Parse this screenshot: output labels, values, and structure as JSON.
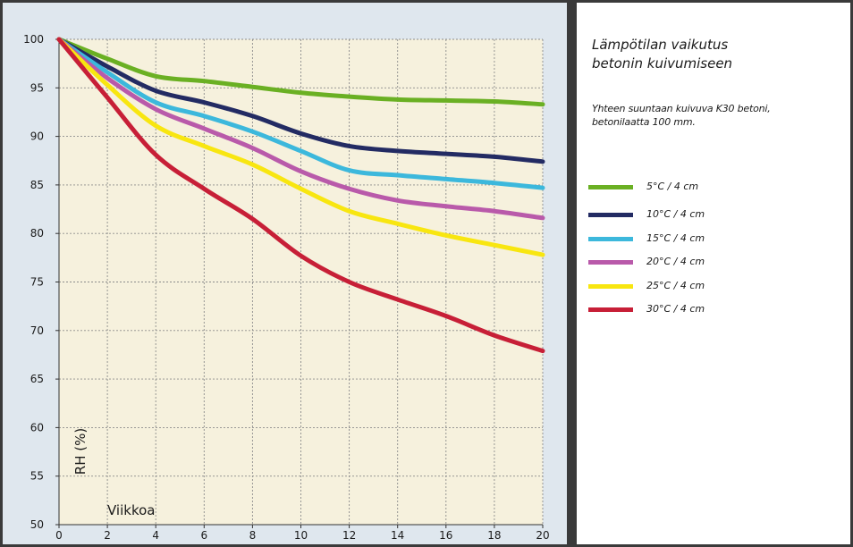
{
  "chart_data": {
    "type": "line",
    "title": "Lämpötilan vaikutus betonin kuivumiseen",
    "title_lines": [
      "Lämpötilan vaikutus",
      "betonin kuivumiseen"
    ],
    "subtitle": "Yhteen suuntaan kuivuva K30 betoni, betonilaatta 100 mm.",
    "subtitle_lines": [
      "Yhteen suuntaan kuivuva K30 betoni,",
      "betonilaatta 100 mm."
    ],
    "xlabel": "Viikkoa",
    "ylabel": "RH (%)",
    "xlim": [
      0,
      20
    ],
    "ylim": [
      50,
      100
    ],
    "x_ticks": [
      "0",
      "2",
      "4",
      "6",
      "8",
      "10",
      "12",
      "14",
      "16",
      "18",
      "20"
    ],
    "y_ticks": [
      "50",
      "55",
      "60",
      "65",
      "70",
      "75",
      "80",
      "85",
      "90",
      "95",
      "100"
    ],
    "grid": true,
    "background_color": "#f6f1dd",
    "legend_position": "right",
    "x": [
      0,
      2,
      4,
      6,
      8,
      10,
      12,
      14,
      16,
      18,
      20
    ],
    "series": [
      {
        "name": "5°C / 4 cm",
        "color": "#6ab023",
        "values": [
          100,
          98,
          96.2,
          95.7,
          95.1,
          94.5,
          94.1,
          93.8,
          93.7,
          93.6,
          93.3
        ]
      },
      {
        "name": "10°C / 4 cm",
        "color": "#232b63",
        "values": [
          100,
          97.2,
          94.7,
          93.5,
          92.1,
          90.3,
          89.0,
          88.5,
          88.2,
          87.9,
          87.4
        ]
      },
      {
        "name": "15°C / 4 cm",
        "color": "#3cb8dc",
        "values": [
          100,
          96.6,
          93.5,
          92.1,
          90.5,
          88.5,
          86.5,
          86.0,
          85.6,
          85.2,
          84.7
        ]
      },
      {
        "name": "20°C / 4 cm",
        "color": "#b95aaa",
        "values": [
          100,
          96.0,
          92.8,
          90.8,
          88.8,
          86.4,
          84.6,
          83.4,
          82.8,
          82.3,
          81.6
        ]
      },
      {
        "name": "25°C / 4 cm",
        "color": "#f8e610",
        "values": [
          100,
          95.3,
          91.1,
          89.0,
          87.1,
          84.6,
          82.3,
          81.0,
          79.8,
          78.8,
          77.8
        ]
      },
      {
        "name": "30°C / 4 cm",
        "color": "#c71f37",
        "values": [
          100,
          94.0,
          88.1,
          84.6,
          81.5,
          77.7,
          75.0,
          73.2,
          71.5,
          69.5,
          67.9
        ]
      }
    ]
  }
}
